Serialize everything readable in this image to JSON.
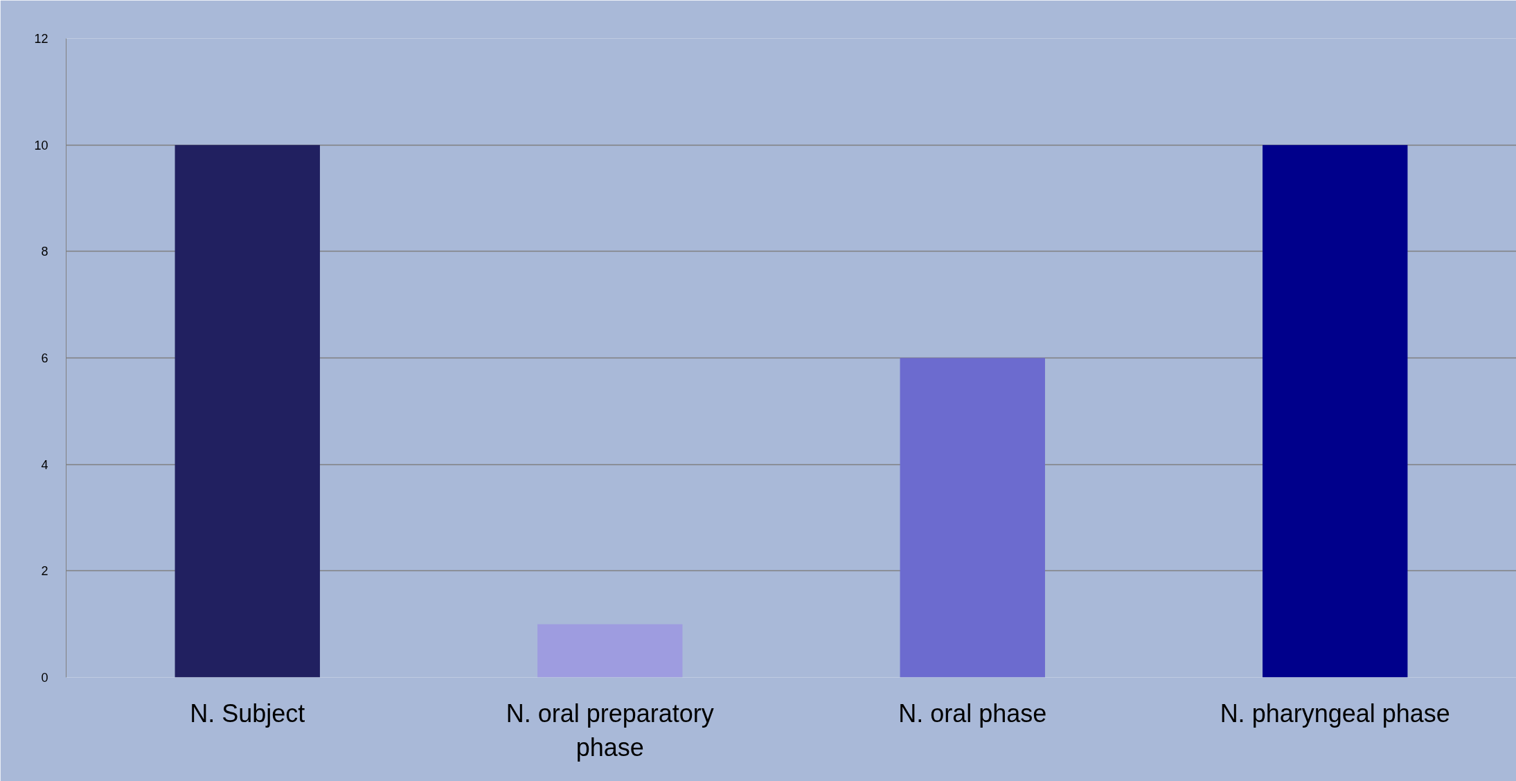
{
  "chart_data": {
    "type": "bar",
    "categories": [
      "N. Subject",
      "N. oral preparatory phase",
      "N. oral phase",
      "N. pharyngeal phase"
    ],
    "values": [
      10,
      1,
      6,
      10
    ],
    "colors": [
      "#212060",
      "#9e9ce0",
      "#6c6bcf",
      "#00008b"
    ],
    "ylim": [
      0,
      12
    ],
    "yticks": [
      0,
      2,
      4,
      6,
      8,
      10,
      12
    ],
    "grid": "y"
  }
}
